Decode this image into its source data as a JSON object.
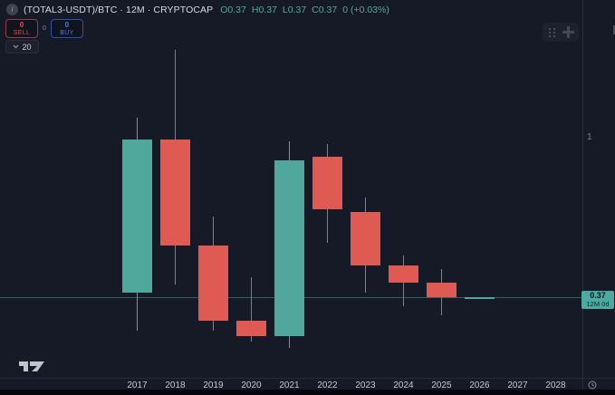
{
  "legend": {
    "symbol_title": "(TOTAL3-USDT)/BTC · 12M · CRYPTOCAP",
    "ohlc": {
      "o": "O0.37",
      "h": "H0.37",
      "l": "L0.37",
      "c": "C0.37",
      "change": "0 (+0.03%)"
    }
  },
  "trade_panel": {
    "sell_value": "0",
    "sell_label": "SELL",
    "spread": "0",
    "buy_value": "0",
    "buy_label": "BUY"
  },
  "interval_dropdown": {
    "value": "20"
  },
  "price_axis": {
    "tick_label": "1",
    "price_label": "0.37",
    "countdown_label": "12M 0d"
  },
  "time_axis": {
    "years": [
      "2017",
      "2018",
      "2019",
      "2020",
      "2021",
      "2022",
      "2023",
      "2024",
      "2025",
      "2026",
      "2027",
      "2028"
    ]
  },
  "colors": {
    "background": "#151a26",
    "up": "#50a89d",
    "down": "#e05a54",
    "badge_bg": "#4caaa0",
    "sell_red": "#e5494f",
    "buy_blue": "#4a7df0",
    "ohlc_text": "#4fa99e"
  },
  "chart_data": {
    "type": "candlestick",
    "title": "(TOTAL3-USDT)/BTC · 12M · CRYPTOCAP",
    "x_categories": [
      "2017",
      "2018",
      "2019",
      "2020",
      "2021",
      "2022",
      "2023",
      "2024",
      "2025",
      "2026",
      "2027",
      "2028"
    ],
    "y_scale": "log",
    "y_axis_ticks": [
      1
    ],
    "current_price": 0.37,
    "current_candle_countdown": "12M 0d",
    "legend_position": "top-left",
    "grid": "off",
    "candles": [
      {
        "year": 2017,
        "open": 0.38,
        "high": 1.13,
        "low": 0.3,
        "close": 0.99,
        "direction": "up"
      },
      {
        "year": 2018,
        "open": 0.99,
        "high": 1.73,
        "low": 0.4,
        "close": 0.51,
        "direction": "down"
      },
      {
        "year": 2019,
        "open": 0.51,
        "high": 0.61,
        "low": 0.3,
        "close": 0.32,
        "direction": "down"
      },
      {
        "year": 2020,
        "open": 0.32,
        "high": 0.42,
        "low": 0.28,
        "close": 0.29,
        "direction": "down"
      },
      {
        "year": 2021,
        "open": 0.29,
        "high": 0.98,
        "low": 0.27,
        "close": 0.87,
        "direction": "up"
      },
      {
        "year": 2022,
        "open": 0.89,
        "high": 0.96,
        "low": 0.52,
        "close": 0.64,
        "direction": "down"
      },
      {
        "year": 2023,
        "open": 0.63,
        "high": 0.69,
        "low": 0.38,
        "close": 0.45,
        "direction": "down"
      },
      {
        "year": 2024,
        "open": 0.45,
        "high": 0.48,
        "low": 0.35,
        "close": 0.405,
        "direction": "down"
      },
      {
        "year": 2025,
        "open": 0.405,
        "high": 0.44,
        "low": 0.33,
        "close": 0.37,
        "direction": "down"
      },
      {
        "year": 2026,
        "open": 0.37,
        "high": 0.37,
        "low": 0.37,
        "close": 0.37,
        "direction": "up"
      }
    ]
  }
}
